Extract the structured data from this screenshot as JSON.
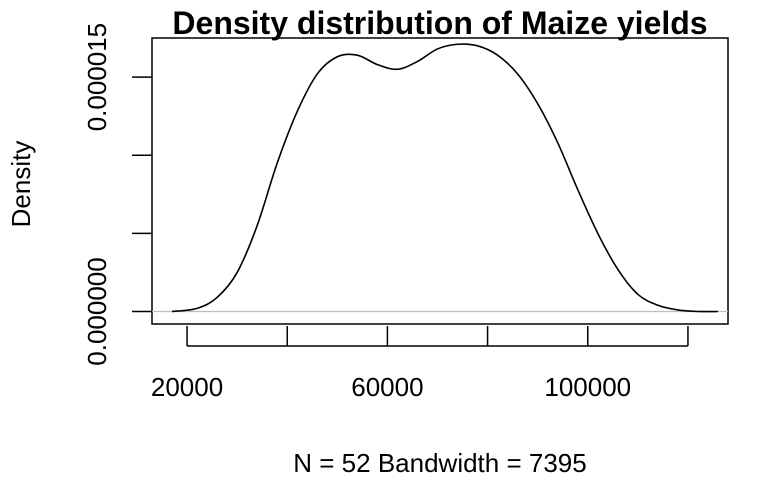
{
  "chart_data": {
    "type": "line",
    "title": "Density distribution of Maize yields",
    "xlabel": "N = 52   Bandwidth = 7395",
    "ylabel": "Density",
    "xlim": [
      13000,
      128000
    ],
    "ylim": [
      -8e-07,
      1.75e-05
    ],
    "x_ticks": [
      20000,
      40000,
      60000,
      80000,
      100000,
      120000
    ],
    "x_tick_labels": [
      "20000",
      "",
      "60000",
      "",
      "100000",
      ""
    ],
    "y_ticks": [
      0.0,
      5e-06,
      1e-05,
      1.5e-05
    ],
    "y_tick_labels": [
      "0.000000",
      "",
      "",
      "0.000015"
    ],
    "grid": false,
    "zero_line": true,
    "colors": {
      "line": "#000000",
      "zero_line": "#bdbdbd"
    },
    "series": [
      {
        "x": [
          17000,
          22000,
          26000,
          30000,
          34000,
          38000,
          42000,
          46000,
          50000,
          54000,
          58000,
          62000,
          66000,
          70000,
          74000,
          78000,
          82000,
          86000,
          90000,
          94000,
          98000,
          102000,
          106000,
          110000,
          114000,
          118000,
          122000,
          126000
        ],
        "y": [
          0.0,
          2e-07,
          9e-07,
          2.5e-06,
          5.5e-06,
          9.5e-06,
          1.28e-05,
          1.52e-05,
          1.63e-05,
          1.64e-05,
          1.58e-05,
          1.55e-05,
          1.6e-05,
          1.68e-05,
          1.71e-05,
          1.7e-05,
          1.64e-05,
          1.52e-05,
          1.33e-05,
          1.08e-05,
          7.8e-06,
          5e-06,
          2.7e-06,
          1.1e-06,
          4e-07,
          1e-07,
          0.0,
          0.0
        ]
      }
    ]
  }
}
